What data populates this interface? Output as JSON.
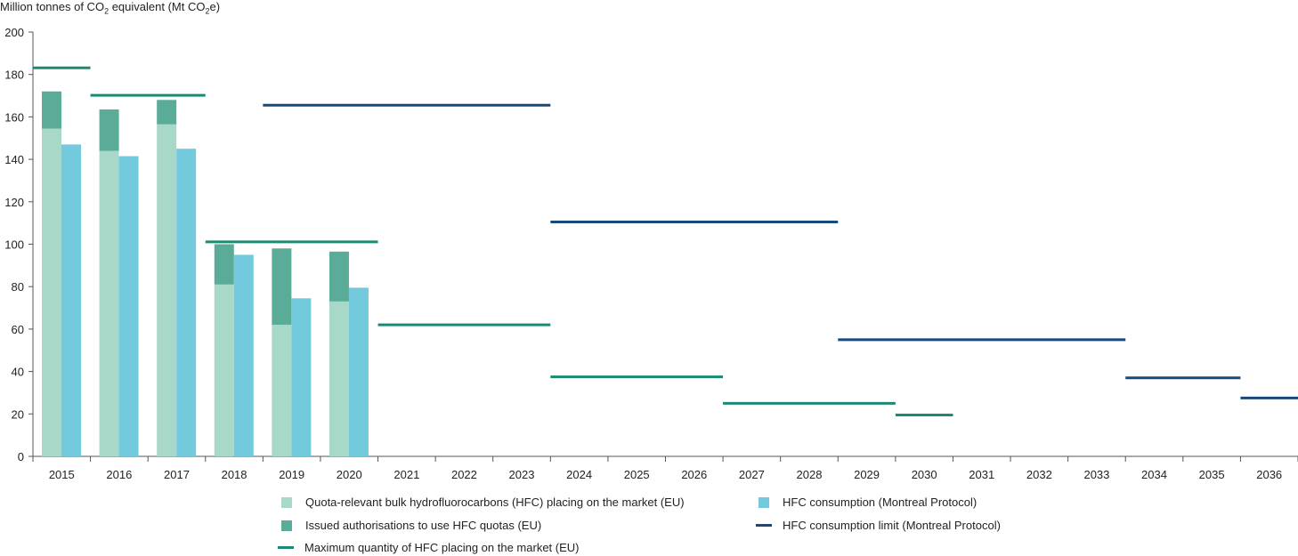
{
  "chart_data": {
    "type": "bar",
    "ylabel": "Million tonnes of CO2 equivalent (Mt CO2e)",
    "ylabel_parts": {
      "a": "Million tonnes of CO",
      "b": "2",
      "c": " equivalent (Mt CO",
      "d": "2",
      "e": "e)"
    },
    "ylim": [
      0,
      200
    ],
    "yticks": [
      0,
      20,
      40,
      60,
      80,
      100,
      120,
      140,
      160,
      180,
      200
    ],
    "categories": [
      "2015",
      "2016",
      "2017",
      "2018",
      "2019",
      "2020",
      "2021",
      "2022",
      "2023",
      "2024",
      "2025",
      "2026",
      "2027",
      "2028",
      "2029",
      "2030",
      "2031",
      "2032",
      "2033",
      "2034",
      "2035",
      "2036"
    ],
    "series": [
      {
        "name": "Quota-relevant bulk hydrofluorocarbons (HFC) placing on the market (EU)",
        "type": "stacked-bar",
        "color": "#a8d9c8",
        "values": [
          154.5,
          144,
          156.5,
          81,
          62,
          73,
          null,
          null,
          null,
          null,
          null,
          null,
          null,
          null,
          null,
          null,
          null,
          null,
          null,
          null,
          null,
          null
        ]
      },
      {
        "name": "Issued authorisations to use HFC quotas (EU)",
        "type": "stacked-bar",
        "color": "#5aab98",
        "values": [
          17.5,
          19.5,
          11.5,
          19,
          36,
          23.5,
          null,
          null,
          null,
          null,
          null,
          null,
          null,
          null,
          null,
          null,
          null,
          null,
          null,
          null,
          null,
          null
        ]
      },
      {
        "name": "HFC consumption (Montreal Protocol)",
        "type": "bar",
        "color": "#74cadd",
        "values": [
          147,
          141.5,
          145,
          95,
          74.5,
          79.5,
          null,
          null,
          null,
          null,
          null,
          null,
          null,
          null,
          null,
          null,
          null,
          null,
          null,
          null,
          null,
          null
        ]
      },
      {
        "name": "Maximum quantity of HFC placing on the market (EU)",
        "type": "step-line",
        "color": "#1a8a73",
        "segments": [
          {
            "from": "2015",
            "to": "2015",
            "value": 183.1
          },
          {
            "from": "2016",
            "to": "2017",
            "value": 170.2
          },
          {
            "from": "2018",
            "to": "2020",
            "value": 101.1
          },
          {
            "from": "2021",
            "to": "2023",
            "value": 62
          },
          {
            "from": "2024",
            "to": "2026",
            "value": 37.5
          },
          {
            "from": "2027",
            "to": "2029",
            "value": 25
          },
          {
            "from": "2030",
            "to": "2030",
            "value": 19.5
          }
        ]
      },
      {
        "name": "HFC consumption limit (Montreal Protocol)",
        "type": "step-line",
        "color": "#174a7c",
        "segments": [
          {
            "from": "2019",
            "to": "2023",
            "value": 165.5
          },
          {
            "from": "2024",
            "to": "2028",
            "value": 110.5
          },
          {
            "from": "2029",
            "to": "2033",
            "value": 55
          },
          {
            "from": "2034",
            "to": "2035",
            "value": 37
          },
          {
            "from": "2036",
            "to": "2036",
            "value": 27.5
          }
        ]
      }
    ],
    "legend_position": "bottom",
    "grid": false
  },
  "legend": [
    {
      "label": "Quota-relevant bulk hydrofluorocarbons (HFC) placing on the market (EU)",
      "color": "#a8d9c8",
      "kind": "box"
    },
    {
      "label": "HFC consumption (Montreal Protocol)",
      "color": "#74cadd",
      "kind": "box"
    },
    {
      "label": "Issued authorisations to use HFC quotas (EU)",
      "color": "#5aab98",
      "kind": "box"
    },
    {
      "label": "HFC consumption limit (Montreal Protocol)",
      "color": "#174a7c",
      "kind": "line"
    },
    {
      "label": "Maximum quantity of HFC placing on the market (EU)",
      "color": "#1a8a73",
      "kind": "line"
    }
  ]
}
